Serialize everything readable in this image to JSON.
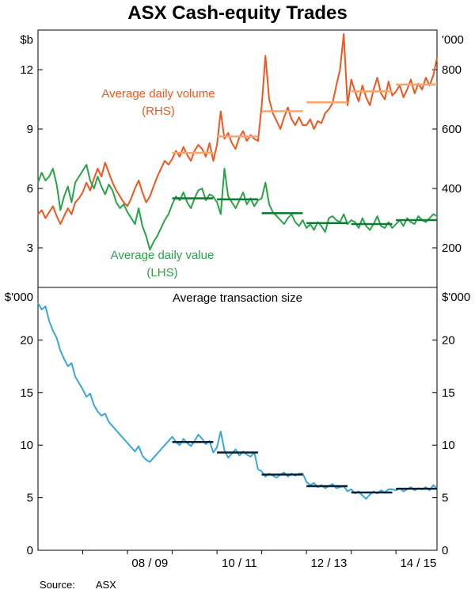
{
  "title": "ASX Cash-equity Trades",
  "source": {
    "label": "Source:",
    "value": "ASX"
  },
  "colors": {
    "axis": "#000000",
    "volume_line": "#F0561D",
    "volume_average": "#F9A468",
    "value_line": "#27A348",
    "value_average": "#0F7A33",
    "transaction_line": "#39A7DC",
    "transaction_average": "#0B1F33"
  },
  "annotations": {
    "volume_line1": "Average daily volume",
    "volume_line2": "(RHS)",
    "value_line1": "Average daily value",
    "value_line2": "(LHS)"
  },
  "x_axis": {
    "labels": [
      {
        "text": "08 / 09",
        "index": 30
      },
      {
        "text": "10 / 11",
        "index": 54
      },
      {
        "text": "12 / 13",
        "index": 78
      },
      {
        "text": "14 / 15",
        "index": 102
      }
    ]
  },
  "chart_data": [
    {
      "type": "line",
      "panel": "top",
      "title": "",
      "frequency": "monthly",
      "x_start": "Jul 2006",
      "x_end": "Jun 2015",
      "left_axis": {
        "label": "$b",
        "ticks": [
          3,
          6,
          9,
          12
        ],
        "range": [
          1,
          14
        ]
      },
      "right_axis": {
        "label": "'000",
        "ticks": [
          200,
          400,
          600,
          800
        ],
        "range": [
          66.7,
          933.3
        ]
      },
      "series": [
        {
          "name": "Average daily volume (RHS)",
          "axis": "right",
          "unit": "'000",
          "color_key": "volume_line",
          "values": [
            313,
            327,
            300,
            320,
            340,
            307,
            280,
            307,
            333,
            313,
            353,
            367,
            387,
            420,
            393,
            433,
            467,
            440,
            487,
            453,
            420,
            393,
            373,
            353,
            340,
            367,
            400,
            427,
            387,
            353,
            373,
            407,
            440,
            467,
            493,
            480,
            500,
            527,
            507,
            540,
            513,
            493,
            527,
            547,
            533,
            507,
            553,
            493,
            547,
            660,
            567,
            587,
            553,
            533,
            573,
            593,
            560,
            580,
            567,
            560,
            680,
            847,
            700,
            653,
            627,
            600,
            640,
            673,
            633,
            613,
            640,
            613,
            613,
            633,
            600,
            627,
            620,
            653,
            667,
            687,
            747,
            800,
            920,
            680,
            767,
            727,
            693,
            747,
            707,
            680,
            733,
            773,
            720,
            700,
            760,
            713,
            727,
            747,
            707,
            733,
            767,
            720,
            753,
            733,
            773,
            747,
            780,
            840
          ]
        },
        {
          "name": "Average daily value (LHS)",
          "axis": "left",
          "unit": "$b",
          "color_key": "value_line",
          "values": [
            6.3,
            6.8,
            6.4,
            6.6,
            7.0,
            6.2,
            4.9,
            5.6,
            6.1,
            5.3,
            6.3,
            6.6,
            6.9,
            7.2,
            6.4,
            6.0,
            6.6,
            6.1,
            5.7,
            6.2,
            5.9,
            5.3,
            5.0,
            5.2,
            4.8,
            4.5,
            4.2,
            5.0,
            4.1,
            3.6,
            2.9,
            3.3,
            3.6,
            4.0,
            4.4,
            4.7,
            5.2,
            5.6,
            5.4,
            5.8,
            5.3,
            5.0,
            5.5,
            5.9,
            6.0,
            5.4,
            5.7,
            5.6,
            5.3,
            4.7,
            7.0,
            5.6,
            5.3,
            5.0,
            5.4,
            5.8,
            5.2,
            5.5,
            5.1,
            5.4,
            5.5,
            6.3,
            5.2,
            4.8,
            4.6,
            4.4,
            4.2,
            4.5,
            4.7,
            4.3,
            4.1,
            4.4,
            4.0,
            4.2,
            3.9,
            4.3,
            4.1,
            3.8,
            4.5,
            4.6,
            4.4,
            4.3,
            4.7,
            4.2,
            4.4,
            4.3,
            4.0,
            4.5,
            4.1,
            3.9,
            4.2,
            4.6,
            4.1,
            4.0,
            4.3,
            4.0,
            4.2,
            4.4,
            4.1,
            4.5,
            4.3,
            4.2,
            4.6,
            4.4,
            4.3,
            4.5,
            4.7,
            4.6
          ]
        }
      ],
      "fy_averages": [
        {
          "name": "Average daily volume (RHS) financial-year averages",
          "axis": "right",
          "color_key": "volume_average",
          "start_index": 36,
          "values": [
            520,
            575,
            660,
            690,
            727,
            750
          ]
        },
        {
          "name": "Average daily value (LHS) financial-year averages",
          "axis": "left",
          "color_key": "value_average",
          "start_index": 36,
          "values": [
            5.5,
            5.45,
            4.75,
            4.25,
            4.2,
            4.4
          ]
        }
      ]
    },
    {
      "type": "line",
      "panel": "bottom",
      "title": "Average transaction size",
      "frequency": "monthly",
      "x_start": "Jul 2006",
      "x_end": "Jun 2015",
      "left_axis": {
        "label": "$'000",
        "ticks": [
          0,
          5,
          10,
          15,
          20
        ],
        "range": [
          0,
          25
        ]
      },
      "right_axis": {
        "label": "$'000",
        "ticks": [
          0,
          5,
          10,
          15,
          20
        ],
        "range": [
          0,
          25
        ]
      },
      "series": [
        {
          "name": "Average transaction size",
          "axis": "left",
          "unit": "$'000",
          "color_key": "transaction_line",
          "values": [
            23.5,
            22.9,
            23.2,
            21.8,
            20.9,
            20.2,
            19.0,
            18.2,
            17.5,
            17.8,
            16.5,
            15.9,
            15.3,
            14.6,
            14.9,
            13.8,
            13.2,
            12.8,
            13.0,
            12.2,
            11.8,
            11.4,
            11.0,
            10.6,
            10.2,
            9.8,
            9.4,
            9.9,
            9.0,
            8.6,
            8.4,
            8.8,
            9.2,
            9.6,
            10.0,
            10.4,
            10.8,
            10.3,
            10.0,
            10.6,
            10.2,
            9.9,
            10.4,
            11.0,
            10.6,
            10.1,
            10.4,
            9.3,
            9.8,
            11.3,
            9.5,
            8.8,
            9.2,
            9.6,
            9.0,
            9.4,
            9.1,
            8.9,
            9.3,
            7.7,
            7.5,
            7.0,
            7.3,
            7.1,
            6.9,
            7.2,
            7.4,
            7.0,
            7.3,
            7.1,
            7.3,
            7.3,
            6.5,
            6.2,
            6.4,
            6.0,
            6.2,
            5.9,
            6.1,
            6.3,
            5.9,
            6.0,
            6.1,
            5.6,
            5.8,
            5.4,
            5.6,
            5.2,
            4.9,
            5.3,
            5.6,
            5.4,
            5.7,
            5.5,
            5.8,
            5.8,
            5.7,
            5.9,
            5.6,
            5.8,
            6.0,
            5.7,
            5.9,
            5.8,
            6.0,
            5.7,
            6.2,
            5.9
          ]
        }
      ],
      "fy_averages": [
        {
          "name": "Average transaction size financial-year averages",
          "axis": "left",
          "color_key": "transaction_average",
          "start_index": 36,
          "values": [
            10.3,
            9.3,
            7.2,
            6.1,
            5.5,
            5.85
          ]
        }
      ]
    }
  ]
}
